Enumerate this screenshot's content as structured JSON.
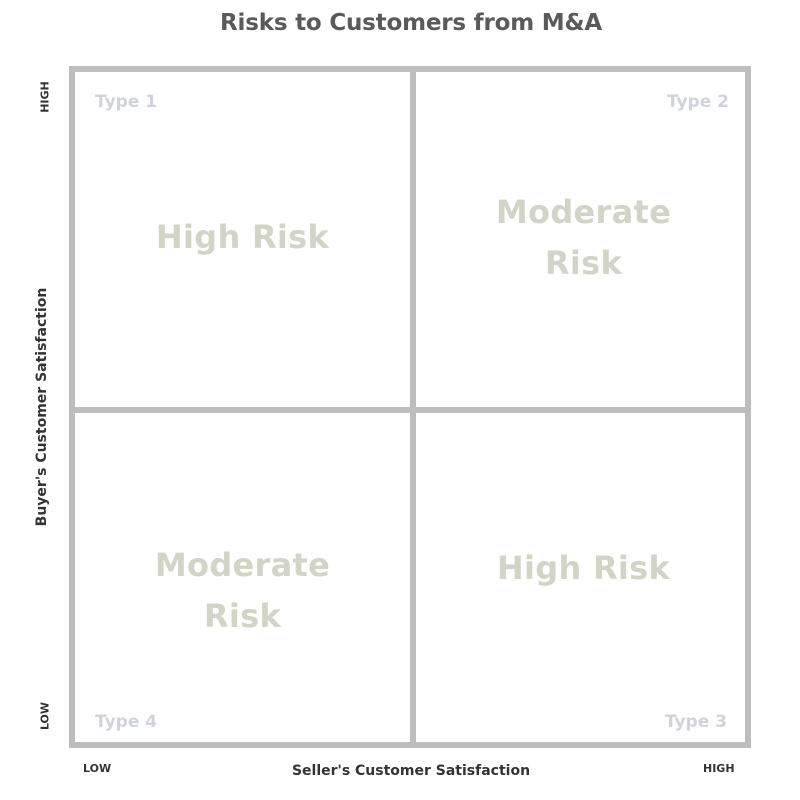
{
  "title": "Risks to Customers from M&A",
  "colors": {
    "grid": "#bdbdbd",
    "type_label": "#cfd3dc",
    "risk_label": "#d2d4c5",
    "title": "#5a5a5a",
    "axis_text": "#333333"
  },
  "axes": {
    "x": {
      "label": "Seller's Customer Satisfaction",
      "low": "LOW",
      "high": "HIGH"
    },
    "y": {
      "label": "Buyer's Customer Satisfaction",
      "low": "LOW",
      "high": "HIGH"
    }
  },
  "quadrants": {
    "top_left": {
      "type": "Type 1",
      "risk_line1": "High Risk",
      "risk_line2": ""
    },
    "top_right": {
      "type": "Type 2",
      "risk_line1": "Moderate",
      "risk_line2": "Risk"
    },
    "bottom_left": {
      "type": "Type 4",
      "risk_line1": "Moderate",
      "risk_line2": "Risk"
    },
    "bottom_right": {
      "type": "Type 3",
      "risk_line1": "High Risk",
      "risk_line2": ""
    }
  }
}
